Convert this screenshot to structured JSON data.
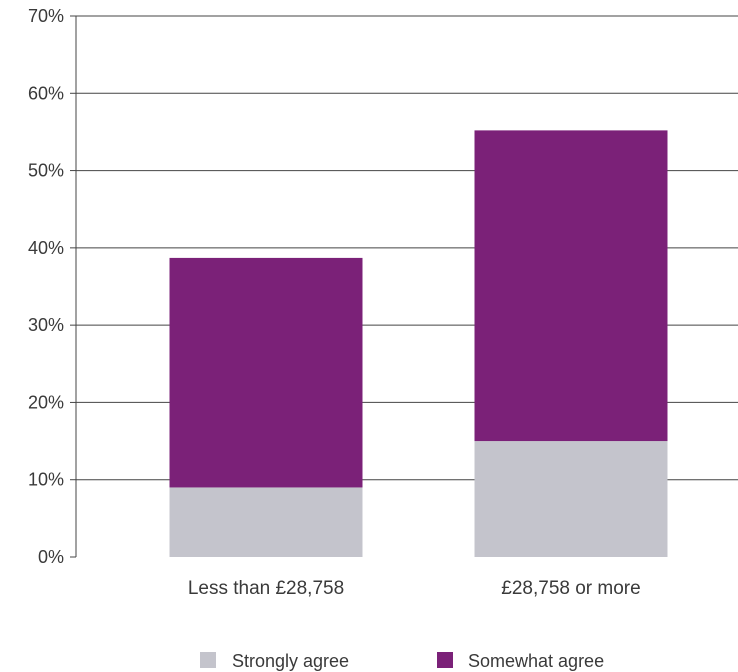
{
  "chart_data": {
    "type": "bar",
    "stacked": true,
    "title": "",
    "xlabel": "",
    "ylabel": "",
    "categories": [
      "Less than £28,758",
      "£28,758 or more"
    ],
    "series": [
      {
        "name": "Strongly agree",
        "color": "#c4c4cc",
        "values": [
          9,
          15
        ]
      },
      {
        "name": "Somewhat agree",
        "color": "#7b2178",
        "values": [
          29.7,
          40.2
        ]
      }
    ],
    "ylim": [
      0,
      70
    ],
    "yticks": [
      0,
      10,
      20,
      30,
      40,
      50,
      60,
      70
    ],
    "ytick_format": "percent",
    "grid": true,
    "legend": "bottom"
  }
}
